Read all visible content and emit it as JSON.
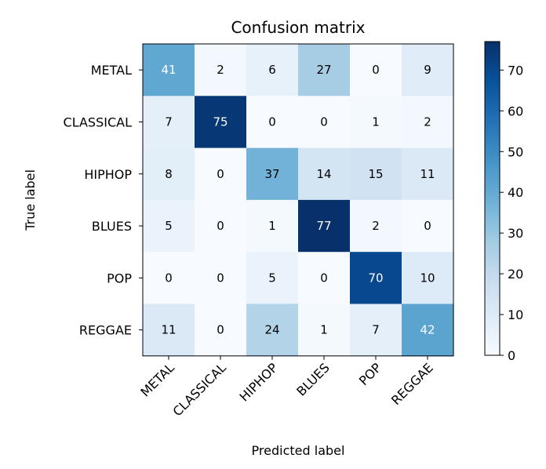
{
  "chart_data": {
    "type": "heatmap",
    "title": "Confusion matrix",
    "xlabel": "Predicted label",
    "ylabel": "True label",
    "x_categories": [
      "METAL",
      "CLASSICAL",
      "HIPHOP",
      "BLUES",
      "POP",
      "REGGAE"
    ],
    "y_categories": [
      "METAL",
      "CLASSICAL",
      "HIPHOP",
      "BLUES",
      "POP",
      "REGGAE"
    ],
    "values": [
      [
        41,
        2,
        6,
        27,
        0,
        9
      ],
      [
        7,
        75,
        0,
        0,
        1,
        2
      ],
      [
        8,
        0,
        37,
        14,
        15,
        11
      ],
      [
        5,
        0,
        1,
        77,
        2,
        0
      ],
      [
        0,
        0,
        5,
        0,
        70,
        10
      ],
      [
        11,
        0,
        24,
        1,
        7,
        42
      ]
    ],
    "colormap": "Blues",
    "colorbar": {
      "min": 0,
      "max": 77,
      "ticks": [
        "0",
        "10",
        "20",
        "30",
        "40",
        "50",
        "60",
        "70"
      ]
    },
    "x_tick_rotation": "45 degrees",
    "grid": false
  }
}
